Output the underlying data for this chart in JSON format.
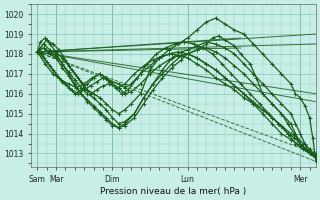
{
  "bg_color": "#c8eee8",
  "grid_color": "#90ccb8",
  "line_color": "#1a5c1a",
  "ylabel_ticks": [
    1013,
    1014,
    1015,
    1016,
    1017,
    1018,
    1019,
    1020
  ],
  "ylim": [
    1012.3,
    1020.5
  ],
  "xlabel": "Pression niveau de la mer( hPa )",
  "xtick_labels": [
    "Sam",
    "Mar",
    "Dim",
    "Lun",
    "Mer"
  ],
  "xtick_positions": [
    0,
    12,
    48,
    96,
    168
  ],
  "xlim": [
    -4,
    178
  ],
  "vlines": [
    0,
    12,
    48,
    96,
    168
  ],
  "fan_lines": [
    {
      "x": [
        0,
        178
      ],
      "y": [
        1018.1,
        1012.6
      ],
      "style": "--",
      "lw": 0.7
    },
    {
      "x": [
        0,
        178
      ],
      "y": [
        1018.1,
        1013.0
      ],
      "style": "--",
      "lw": 0.7
    },
    {
      "x": [
        0,
        178
      ],
      "y": [
        1018.1,
        1015.6
      ],
      "style": "-",
      "lw": 0.7
    },
    {
      "x": [
        0,
        178
      ],
      "y": [
        1018.1,
        1016.0
      ],
      "style": "-",
      "lw": 0.7
    },
    {
      "x": [
        0,
        178
      ],
      "y": [
        1018.1,
        1018.5
      ],
      "style": "-",
      "lw": 0.7
    },
    {
      "x": [
        0,
        178
      ],
      "y": [
        1018.1,
        1019.0
      ],
      "style": "-",
      "lw": 0.7
    },
    {
      "x": [
        0,
        130
      ],
      "y": [
        1018.1,
        1018.8
      ],
      "style": "-",
      "lw": 0.7
    },
    {
      "x": [
        0,
        130
      ],
      "y": [
        1018.1,
        1018.3
      ],
      "style": "-",
      "lw": 0.7
    }
  ],
  "curves": [
    {
      "pts": [
        [
          0,
          1018.1
        ],
        [
          2,
          1018.6
        ],
        [
          5,
          1018.8
        ],
        [
          8,
          1018.5
        ],
        [
          12,
          1018.1
        ],
        [
          16,
          1017.8
        ],
        [
          20,
          1017.4
        ],
        [
          24,
          1017.0
        ],
        [
          28,
          1016.6
        ],
        [
          32,
          1016.2
        ],
        [
          36,
          1016.0
        ],
        [
          40,
          1015.8
        ],
        [
          44,
          1015.5
        ],
        [
          48,
          1015.2
        ],
        [
          52,
          1015.0
        ],
        [
          56,
          1015.2
        ],
        [
          60,
          1015.5
        ],
        [
          66,
          1016.0
        ],
        [
          72,
          1017.2
        ],
        [
          78,
          1017.8
        ],
        [
          84,
          1018.2
        ],
        [
          90,
          1018.5
        ],
        [
          96,
          1018.8
        ],
        [
          102,
          1019.2
        ],
        [
          108,
          1019.6
        ],
        [
          114,
          1019.8
        ],
        [
          120,
          1019.5
        ],
        [
          126,
          1019.2
        ],
        [
          132,
          1019.0
        ],
        [
          138,
          1018.5
        ],
        [
          144,
          1018.0
        ],
        [
          150,
          1017.5
        ],
        [
          156,
          1017.0
        ],
        [
          162,
          1016.5
        ],
        [
          165,
          1016.0
        ],
        [
          168,
          1015.8
        ],
        [
          171,
          1015.4
        ],
        [
          174,
          1014.8
        ],
        [
          176,
          1013.8
        ],
        [
          178,
          1012.6
        ]
      ],
      "lw": 0.9,
      "marker": "+"
    },
    {
      "pts": [
        [
          0,
          1018.1
        ],
        [
          4,
          1018.3
        ],
        [
          8,
          1018.1
        ],
        [
          12,
          1017.9
        ],
        [
          16,
          1017.5
        ],
        [
          20,
          1017.1
        ],
        [
          24,
          1016.7
        ],
        [
          28,
          1016.3
        ],
        [
          32,
          1016.0
        ],
        [
          36,
          1015.8
        ],
        [
          40,
          1015.5
        ],
        [
          44,
          1015.2
        ],
        [
          48,
          1014.8
        ],
        [
          52,
          1014.5
        ],
        [
          56,
          1014.6
        ],
        [
          62,
          1015.0
        ],
        [
          68,
          1015.8
        ],
        [
          74,
          1016.5
        ],
        [
          80,
          1017.2
        ],
        [
          86,
          1017.8
        ],
        [
          92,
          1018.1
        ],
        [
          96,
          1018.2
        ],
        [
          102,
          1018.4
        ],
        [
          108,
          1018.6
        ],
        [
          114,
          1018.5
        ],
        [
          120,
          1018.3
        ],
        [
          126,
          1018.0
        ],
        [
          132,
          1017.5
        ],
        [
          138,
          1017.0
        ],
        [
          144,
          1016.5
        ],
        [
          150,
          1016.0
        ],
        [
          156,
          1015.5
        ],
        [
          162,
          1015.0
        ],
        [
          165,
          1014.5
        ],
        [
          168,
          1014.0
        ],
        [
          171,
          1013.5
        ],
        [
          174,
          1013.2
        ],
        [
          176,
          1013.0
        ],
        [
          178,
          1013.0
        ]
      ],
      "lw": 0.9,
      "marker": "+"
    },
    {
      "pts": [
        [
          0,
          1018.1
        ],
        [
          4,
          1018.5
        ],
        [
          8,
          1018.2
        ],
        [
          12,
          1018.0
        ],
        [
          16,
          1017.5
        ],
        [
          20,
          1017.0
        ],
        [
          24,
          1016.5
        ],
        [
          28,
          1016.0
        ],
        [
          32,
          1015.6
        ],
        [
          36,
          1015.3
        ],
        [
          40,
          1015.0
        ],
        [
          44,
          1014.7
        ],
        [
          48,
          1014.4
        ],
        [
          52,
          1014.3
        ],
        [
          56,
          1014.5
        ],
        [
          62,
          1015.0
        ],
        [
          68,
          1015.8
        ],
        [
          74,
          1016.5
        ],
        [
          80,
          1017.0
        ],
        [
          86,
          1017.5
        ],
        [
          92,
          1017.9
        ],
        [
          96,
          1018.0
        ],
        [
          102,
          1018.2
        ],
        [
          108,
          1018.3
        ],
        [
          114,
          1018.1
        ],
        [
          120,
          1017.8
        ],
        [
          126,
          1017.4
        ],
        [
          132,
          1017.0
        ],
        [
          138,
          1016.5
        ],
        [
          144,
          1016.0
        ],
        [
          150,
          1015.5
        ],
        [
          156,
          1015.0
        ],
        [
          162,
          1014.5
        ],
        [
          165,
          1014.0
        ],
        [
          168,
          1013.5
        ],
        [
          171,
          1013.2
        ],
        [
          174,
          1013.0
        ],
        [
          176,
          1012.9
        ],
        [
          178,
          1012.8
        ]
      ],
      "lw": 0.9,
      "marker": "+"
    },
    {
      "pts": [
        [
          0,
          1018.1
        ],
        [
          4,
          1018.3
        ],
        [
          8,
          1018.0
        ],
        [
          12,
          1017.8
        ],
        [
          16,
          1017.3
        ],
        [
          20,
          1016.9
        ],
        [
          24,
          1016.4
        ],
        [
          28,
          1016.0
        ],
        [
          32,
          1015.7
        ],
        [
          36,
          1015.4
        ],
        [
          40,
          1015.1
        ],
        [
          44,
          1014.8
        ],
        [
          48,
          1014.5
        ],
        [
          52,
          1014.3
        ],
        [
          56,
          1014.4
        ],
        [
          62,
          1014.8
        ],
        [
          68,
          1015.5
        ],
        [
          74,
          1016.2
        ],
        [
          80,
          1016.8
        ],
        [
          86,
          1017.3
        ],
        [
          92,
          1017.7
        ],
        [
          96,
          1018.0
        ],
        [
          102,
          1018.2
        ],
        [
          108,
          1018.5
        ],
        [
          112,
          1018.8
        ],
        [
          116,
          1018.9
        ],
        [
          120,
          1018.7
        ],
        [
          126,
          1018.4
        ],
        [
          130,
          1018.0
        ],
        [
          136,
          1017.5
        ],
        [
          140,
          1016.8
        ],
        [
          144,
          1016.0
        ],
        [
          150,
          1015.5
        ],
        [
          156,
          1015.0
        ],
        [
          160,
          1014.5
        ],
        [
          164,
          1014.0
        ],
        [
          168,
          1013.5
        ],
        [
          172,
          1013.2
        ],
        [
          176,
          1012.9
        ],
        [
          178,
          1012.8
        ]
      ],
      "lw": 0.9,
      "marker": "+"
    },
    {
      "pts": [
        [
          0,
          1018.1
        ],
        [
          6,
          1018.7
        ],
        [
          10,
          1018.5
        ],
        [
          14,
          1018.2
        ],
        [
          18,
          1017.7
        ],
        [
          22,
          1017.2
        ],
        [
          26,
          1016.8
        ],
        [
          30,
          1016.3
        ],
        [
          34,
          1016.0
        ],
        [
          38,
          1016.2
        ],
        [
          42,
          1016.4
        ],
        [
          46,
          1016.5
        ],
        [
          50,
          1016.3
        ],
        [
          54,
          1016.0
        ],
        [
          58,
          1016.2
        ],
        [
          64,
          1016.8
        ],
        [
          70,
          1017.5
        ],
        [
          76,
          1018.0
        ],
        [
          82,
          1018.3
        ],
        [
          88,
          1018.5
        ],
        [
          94,
          1018.6
        ],
        [
          100,
          1018.5
        ],
        [
          106,
          1018.3
        ],
        [
          112,
          1018.0
        ],
        [
          118,
          1017.5
        ],
        [
          124,
          1017.0
        ],
        [
          130,
          1016.5
        ],
        [
          136,
          1016.0
        ],
        [
          142,
          1015.5
        ],
        [
          148,
          1015.0
        ],
        [
          154,
          1014.5
        ],
        [
          160,
          1014.0
        ],
        [
          165,
          1013.5
        ],
        [
          170,
          1013.2
        ],
        [
          174,
          1013.0
        ],
        [
          178,
          1012.8
        ]
      ],
      "lw": 0.9,
      "marker": "+"
    },
    {
      "pts": [
        [
          0,
          1018.1
        ],
        [
          3,
          1018.0
        ],
        [
          6,
          1017.6
        ],
        [
          10,
          1017.2
        ],
        [
          14,
          1016.8
        ],
        [
          18,
          1016.5
        ],
        [
          22,
          1016.2
        ],
        [
          26,
          1016.0
        ],
        [
          30,
          1016.2
        ],
        [
          34,
          1016.4
        ],
        [
          38,
          1016.6
        ],
        [
          42,
          1016.8
        ],
        [
          46,
          1016.6
        ],
        [
          48,
          1016.5
        ],
        [
          52,
          1016.3
        ],
        [
          56,
          1016.0
        ],
        [
          60,
          1016.1
        ],
        [
          66,
          1016.5
        ],
        [
          72,
          1017.0
        ],
        [
          78,
          1017.4
        ],
        [
          84,
          1017.7
        ],
        [
          90,
          1017.9
        ],
        [
          96,
          1018.0
        ],
        [
          102,
          1017.8
        ],
        [
          108,
          1017.5
        ],
        [
          114,
          1017.2
        ],
        [
          120,
          1016.8
        ],
        [
          126,
          1016.4
        ],
        [
          132,
          1016.0
        ],
        [
          138,
          1015.5
        ],
        [
          144,
          1015.0
        ],
        [
          150,
          1014.5
        ],
        [
          156,
          1014.0
        ],
        [
          162,
          1013.7
        ],
        [
          166,
          1013.5
        ],
        [
          170,
          1013.3
        ],
        [
          174,
          1013.0
        ],
        [
          178,
          1012.9
        ]
      ],
      "lw": 0.9,
      "marker": "+"
    },
    {
      "pts": [
        [
          0,
          1018.1
        ],
        [
          4,
          1017.8
        ],
        [
          8,
          1017.4
        ],
        [
          12,
          1017.0
        ],
        [
          16,
          1016.6
        ],
        [
          20,
          1016.3
        ],
        [
          24,
          1016.0
        ],
        [
          28,
          1016.2
        ],
        [
          32,
          1016.5
        ],
        [
          36,
          1016.8
        ],
        [
          40,
          1017.0
        ],
        [
          44,
          1016.8
        ],
        [
          48,
          1016.6
        ],
        [
          52,
          1016.5
        ],
        [
          56,
          1016.3
        ],
        [
          60,
          1016.5
        ],
        [
          66,
          1017.0
        ],
        [
          72,
          1017.4
        ],
        [
          78,
          1017.8
        ],
        [
          84,
          1018.0
        ],
        [
          90,
          1018.1
        ],
        [
          96,
          1018.0
        ],
        [
          102,
          1017.8
        ],
        [
          108,
          1017.5
        ],
        [
          114,
          1017.2
        ],
        [
          120,
          1016.8
        ],
        [
          126,
          1016.4
        ],
        [
          132,
          1016.0
        ],
        [
          138,
          1015.6
        ],
        [
          144,
          1015.2
        ],
        [
          150,
          1014.8
        ],
        [
          156,
          1014.4
        ],
        [
          162,
          1014.0
        ],
        [
          166,
          1013.8
        ],
        [
          170,
          1013.5
        ],
        [
          174,
          1013.2
        ],
        [
          178,
          1012.9
        ]
      ],
      "lw": 0.9,
      "marker": "+"
    },
    {
      "pts": [
        [
          0,
          1018.1
        ],
        [
          5,
          1017.5
        ],
        [
          10,
          1017.0
        ],
        [
          15,
          1016.7
        ],
        [
          20,
          1016.5
        ],
        [
          25,
          1016.3
        ],
        [
          30,
          1016.5
        ],
        [
          35,
          1016.8
        ],
        [
          40,
          1017.0
        ],
        [
          44,
          1016.8
        ],
        [
          48,
          1016.5
        ],
        [
          52,
          1016.3
        ],
        [
          56,
          1016.5
        ],
        [
          62,
          1017.0
        ],
        [
          68,
          1017.4
        ],
        [
          74,
          1017.7
        ],
        [
          80,
          1017.9
        ],
        [
          86,
          1018.0
        ],
        [
          92,
          1017.9
        ],
        [
          96,
          1017.8
        ],
        [
          102,
          1017.5
        ],
        [
          108,
          1017.2
        ],
        [
          114,
          1016.8
        ],
        [
          120,
          1016.5
        ],
        [
          126,
          1016.2
        ],
        [
          132,
          1015.8
        ],
        [
          138,
          1015.5
        ],
        [
          144,
          1015.2
        ],
        [
          150,
          1014.8
        ],
        [
          156,
          1014.4
        ],
        [
          160,
          1014.0
        ],
        [
          164,
          1013.8
        ],
        [
          168,
          1013.5
        ],
        [
          172,
          1013.2
        ],
        [
          176,
          1013.0
        ],
        [
          178,
          1012.9
        ]
      ],
      "lw": 0.9,
      "marker": "+"
    }
  ]
}
